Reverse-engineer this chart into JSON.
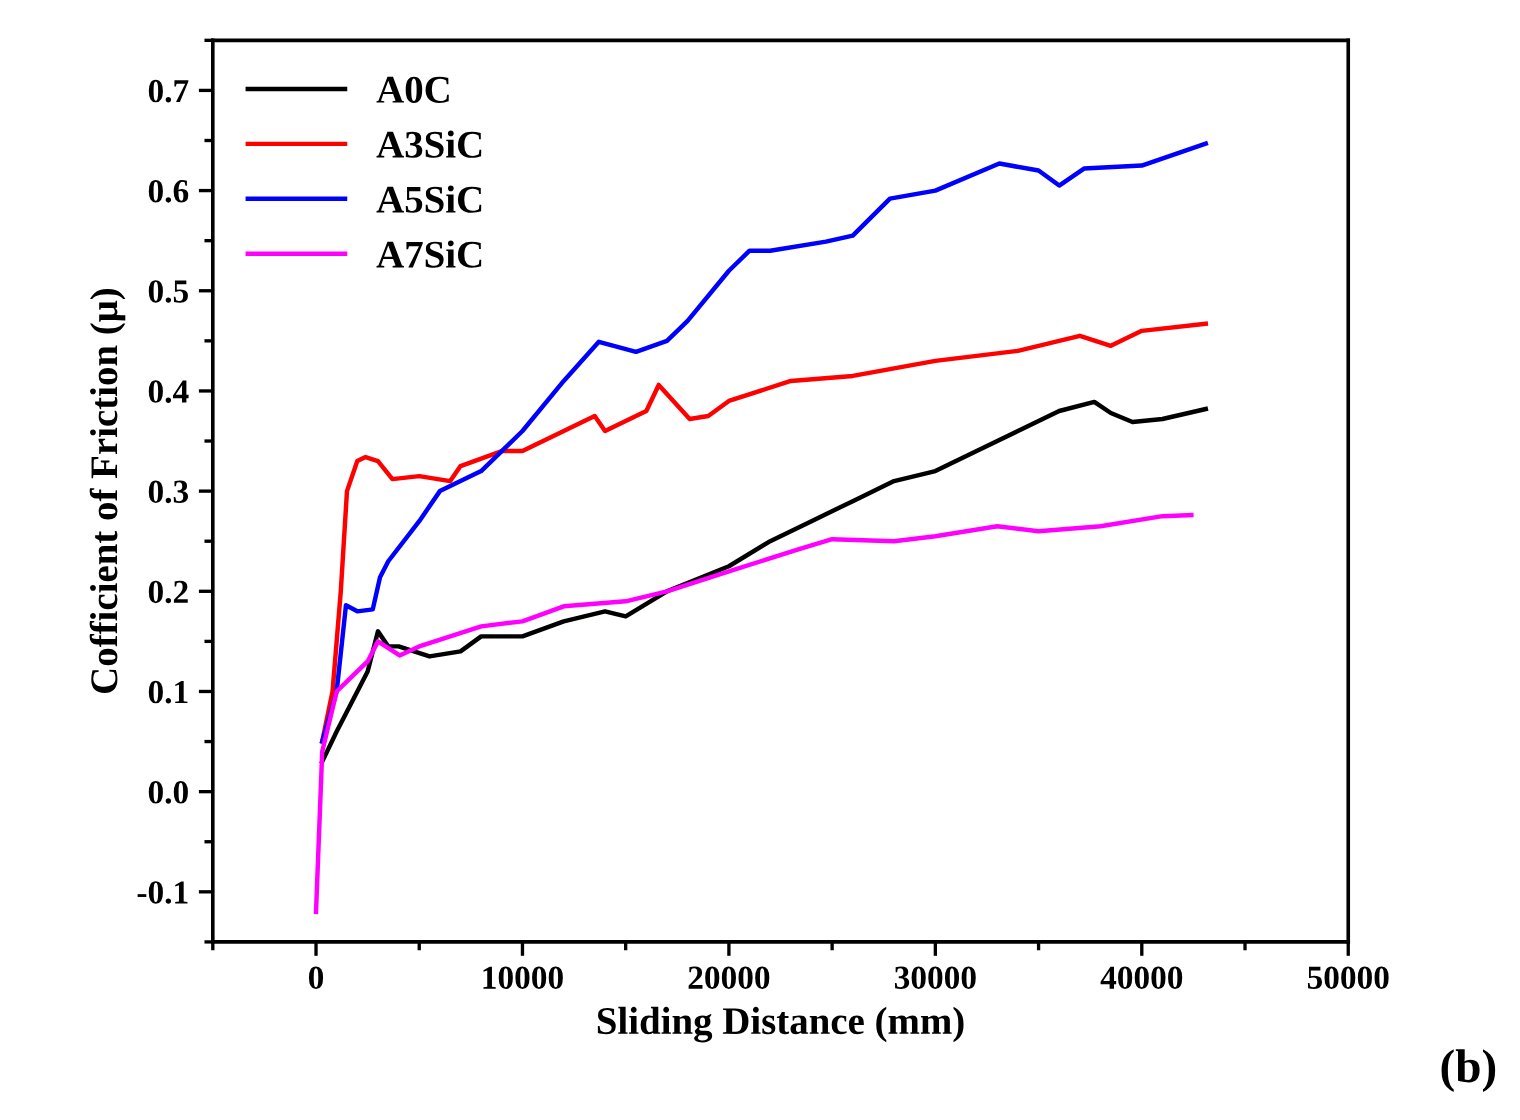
{
  "chart_data": {
    "type": "line",
    "xlabel": "Sliding Distance (mm)",
    "ylabel": "Cofficient of Friction (μ)",
    "xlim": [
      -5000,
      50000
    ],
    "xticks": [
      0,
      10000,
      20000,
      30000,
      40000,
      50000
    ],
    "ylim": [
      -0.15,
      0.75
    ],
    "yticks": [
      {
        "value": -0.1,
        "label": "-0.1"
      },
      {
        "value": 0.0,
        "label": "0.0"
      },
      0.1,
      0.2,
      0.3,
      0.4,
      0.5,
      0.6,
      0.7
    ],
    "grid": false,
    "legend": "top left",
    "marker": "none",
    "line_style": "solid",
    "annotations": [
      "(b)"
    ],
    "series": [
      {
        "name": "A0C",
        "color": "#000000",
        "x": [
          300,
          1000,
          2000,
          2500,
          3000,
          3500,
          4000,
          5500,
          7000,
          8000,
          10000,
          12000,
          14000,
          15000,
          17000,
          20000,
          22000,
          24000,
          26000,
          28000,
          30000,
          32000,
          34000,
          36000,
          37700,
          38500,
          39550,
          41000,
          43100
        ],
        "values": [
          0.03,
          0.06,
          0.1,
          0.12,
          0.16,
          0.145,
          0.145,
          0.135,
          0.14,
          0.155,
          0.155,
          0.17,
          0.18,
          0.175,
          0.2,
          0.225,
          0.25,
          0.27,
          0.29,
          0.31,
          0.32,
          0.34,
          0.36,
          0.38,
          0.389,
          0.378,
          0.369,
          0.372,
          0.382
        ]
      },
      {
        "name": "A3SiC",
        "color": "#ff0000",
        "x": [
          300,
          800,
          1200,
          1500,
          2000,
          2400,
          3000,
          3700,
          5000,
          6500,
          7000,
          9000,
          10000,
          12000,
          13500,
          14000,
          16000,
          16600,
          18100,
          19000,
          20000,
          23000,
          26000,
          30000,
          34000,
          37000,
          38500,
          40000,
          43100
        ],
        "values": [
          0.05,
          0.1,
          0.2,
          0.3,
          0.33,
          0.334,
          0.33,
          0.312,
          0.315,
          0.31,
          0.325,
          0.34,
          0.34,
          0.36,
          0.375,
          0.36,
          0.38,
          0.406,
          0.372,
          0.375,
          0.39,
          0.41,
          0.415,
          0.43,
          0.44,
          0.455,
          0.445,
          0.46,
          0.467
        ]
      },
      {
        "name": "A5SiC",
        "color": "#0000ff",
        "x": [
          300,
          1000,
          1450,
          2000,
          2750,
          3100,
          3500,
          5000,
          6000,
          8000,
          10000,
          12000,
          13700,
          15500,
          17000,
          18000,
          20000,
          21000,
          22000,
          24700,
          26000,
          27800,
          30000,
          33100,
          35000,
          36000,
          37200,
          40000,
          43100
        ],
        "values": [
          0.05,
          0.1,
          0.186,
          0.18,
          0.182,
          0.214,
          0.23,
          0.27,
          0.3,
          0.32,
          0.36,
          0.41,
          0.449,
          0.439,
          0.45,
          0.47,
          0.52,
          0.54,
          0.54,
          0.549,
          0.555,
          0.592,
          0.6,
          0.627,
          0.62,
          0.605,
          0.622,
          0.625,
          0.647
        ]
      },
      {
        "name": "A7SiC",
        "color": "#ff00ff",
        "x": [
          0,
          300,
          1000,
          1500,
          2500,
          3000,
          4050,
          5000,
          8000,
          10000,
          12000,
          15000,
          17000,
          20000,
          23400,
          25000,
          28000,
          30000,
          33000,
          35000,
          38000,
          41000,
          42400
        ],
        "values": [
          -0.12,
          0.04,
          0.1,
          0.11,
          0.13,
          0.15,
          0.136,
          0.145,
          0.165,
          0.17,
          0.185,
          0.19,
          0.2,
          0.22,
          0.242,
          0.252,
          0.25,
          0.255,
          0.265,
          0.26,
          0.265,
          0.275,
          0.276
        ]
      }
    ]
  }
}
